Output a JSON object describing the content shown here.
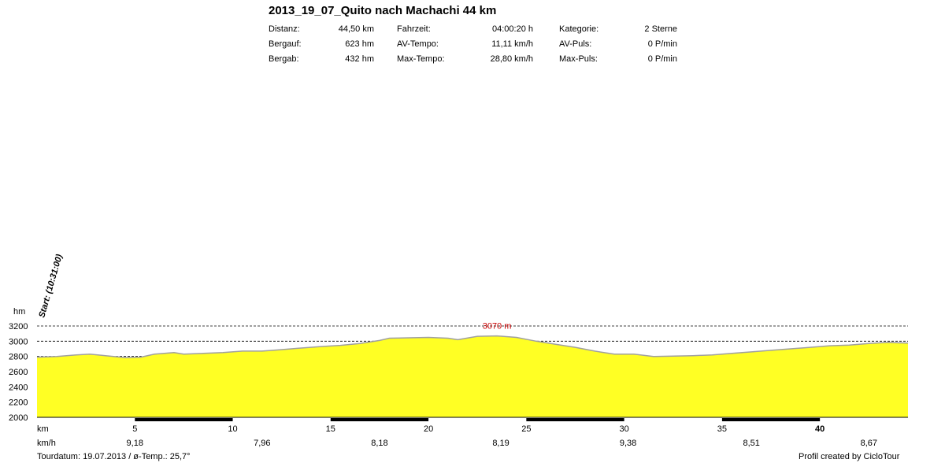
{
  "header": {
    "title": "2013_19_07_Quito nach Machachi 44 km",
    "stats": [
      {
        "label": "Distanz:",
        "value": "44,50 km"
      },
      {
        "label": "Bergauf:",
        "value": "623 hm"
      },
      {
        "label": "Bergab:",
        "value": "432 hm"
      },
      {
        "label": "Fahrzeit:",
        "value": "04:00:20 h"
      },
      {
        "label": "AV-Tempo:",
        "value": "11,11 km/h"
      },
      {
        "label": "Max-Tempo:",
        "value": "28,80 km/h"
      },
      {
        "label": "Kategorie:",
        "value": "2 Sterne"
      },
      {
        "label": "AV-Puls:",
        "value": "0 P/min"
      },
      {
        "label": "Max-Puls:",
        "value": "0 P/min"
      }
    ]
  },
  "chart_data": {
    "type": "area",
    "ylabel": "hm",
    "xlabel": "km",
    "speed_label": "km/h",
    "start_label": "Start: (10:31:00)",
    "max_label": "3070 m",
    "ylim": [
      2000,
      3200
    ],
    "xlim": [
      0,
      44.5
    ],
    "yticks": [
      3200,
      3000,
      2800,
      2600,
      2400,
      2200,
      2000
    ],
    "xticks": [
      "5",
      "10",
      "15",
      "20",
      "25",
      "30",
      "35",
      "40"
    ],
    "speeds": [
      {
        "km": 5,
        "value": "9,18"
      },
      {
        "km": 11.5,
        "value": "7,96"
      },
      {
        "km": 17.5,
        "value": "8,18"
      },
      {
        "km": 23.7,
        "value": "8,19"
      },
      {
        "km": 30.2,
        "value": "9,38"
      },
      {
        "km": 36.5,
        "value": "8,51"
      },
      {
        "km": 42.5,
        "value": "8,67"
      }
    ],
    "x": [
      0,
      1,
      2,
      2.7,
      3.5,
      4.5,
      5.3,
      6,
      7,
      7.5,
      8.5,
      9.5,
      10.5,
      11.5,
      12.5,
      13.5,
      14.5,
      15.5,
      16.5,
      17.5,
      18,
      19,
      20,
      21,
      21.5,
      22.5,
      23.5,
      24.5,
      25.5,
      26.5,
      27.5,
      28.5,
      29.5,
      30.5,
      31.5,
      32.5,
      33.5,
      34.5,
      35.5,
      36.5,
      37.5,
      38.5,
      39.5,
      40.5,
      41.5,
      42.5,
      43.5,
      44.5
    ],
    "elevation": [
      2790,
      2800,
      2820,
      2830,
      2810,
      2785,
      2790,
      2830,
      2850,
      2830,
      2840,
      2850,
      2870,
      2870,
      2890,
      2910,
      2930,
      2945,
      2970,
      3010,
      3040,
      3045,
      3050,
      3040,
      3020,
      3065,
      3070,
      3050,
      3000,
      2960,
      2920,
      2870,
      2830,
      2830,
      2800,
      2805,
      2810,
      2820,
      2840,
      2860,
      2880,
      2900,
      2920,
      2940,
      2950,
      2970,
      2985,
      2975
    ]
  },
  "footer": {
    "left": "Tourdatum: 19.07.2013  /  ø-Temp.: 25,7°",
    "right": "Profil created by CicloTour"
  }
}
